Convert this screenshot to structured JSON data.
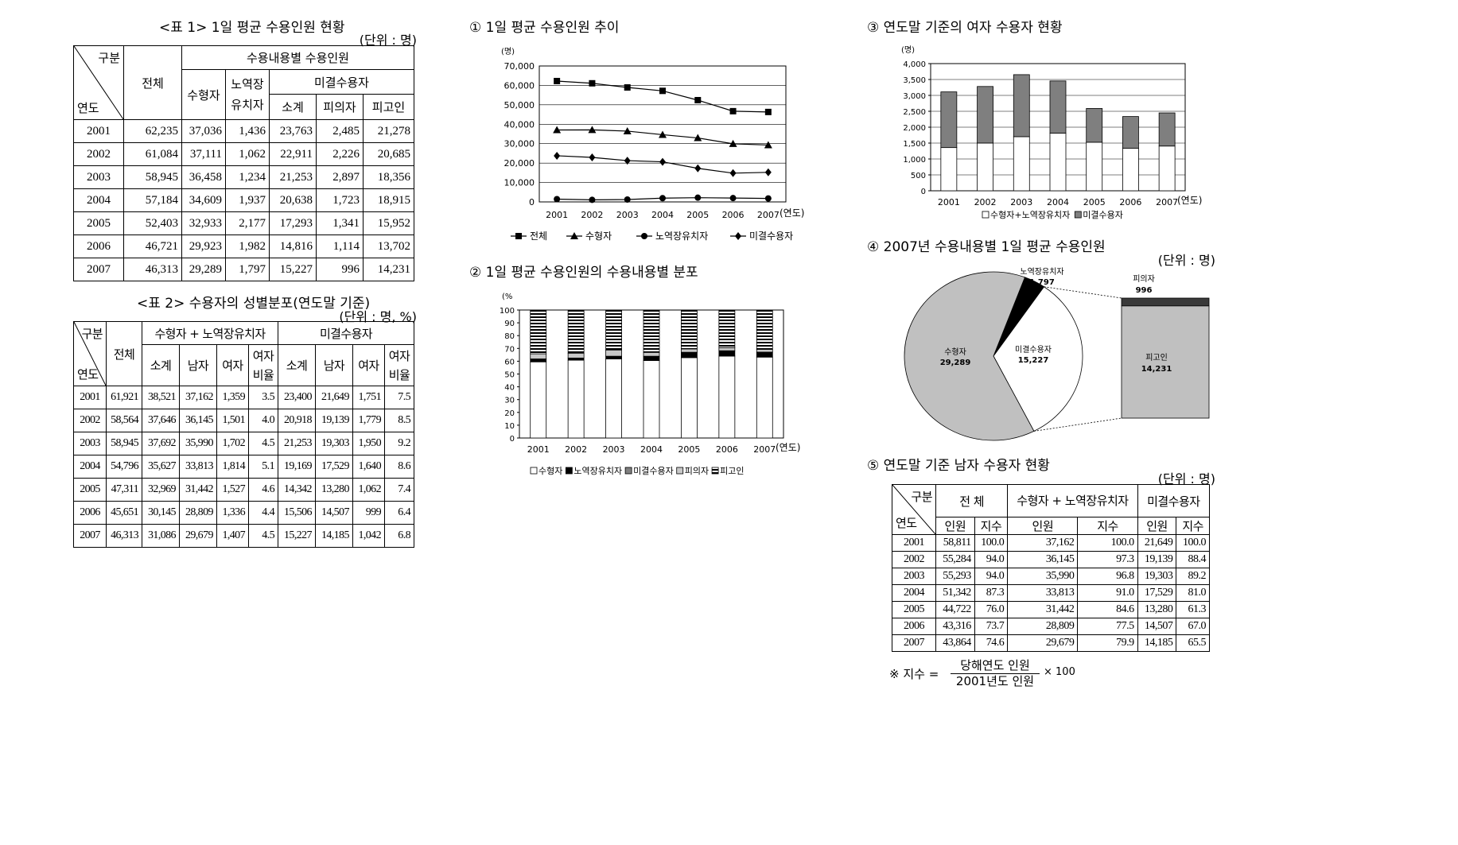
{
  "table1": {
    "title": "<표 1> 1일 평균 수용인원 현황",
    "unit": "(단위 : 명)",
    "hdr_corner_top": "구분",
    "hdr_corner_bot": "연도",
    "hdr_total": "전체",
    "hdr_group": "수용내용별 수용인원",
    "hdr_sentenced": "수형자",
    "hdr_labor": "노역장 유치자",
    "hdr_unsent": "미결수용자",
    "hdr_sub": "소계",
    "hdr_suspect": "피의자",
    "hdr_defendant": "피고인",
    "rows": [
      [
        "2001",
        "62,235",
        "37,036",
        "1,436",
        "23,763",
        "2,485",
        "21,278"
      ],
      [
        "2002",
        "61,084",
        "37,111",
        "1,062",
        "22,911",
        "2,226",
        "20,685"
      ],
      [
        "2003",
        "58,945",
        "36,458",
        "1,234",
        "21,253",
        "2,897",
        "18,356"
      ],
      [
        "2004",
        "57,184",
        "34,609",
        "1,937",
        "20,638",
        "1,723",
        "18,915"
      ],
      [
        "2005",
        "52,403",
        "32,933",
        "2,177",
        "17,293",
        "1,341",
        "15,952"
      ],
      [
        "2006",
        "46,721",
        "29,923",
        "1,982",
        "14,816",
        "1,114",
        "13,702"
      ],
      [
        "2007",
        "46,313",
        "29,289",
        "1,797",
        "15,227",
        "996",
        "14,231"
      ]
    ]
  },
  "table2": {
    "title": "<표 2> 수용자의 성별분포(연도말 기준)",
    "unit": "(단위 : 명, %)",
    "hdr_corner_top": "구분",
    "hdr_corner_bot": "연도",
    "hdr_total": "전체",
    "hdr_group1": "수형자 + 노역장유치자",
    "hdr_group2": "미결수용자",
    "hdr_sub": "소계",
    "hdr_male": "남자",
    "hdr_female": "여자",
    "hdr_ratio": "여자 비율",
    "rows": [
      [
        "2001",
        "61,921",
        "38,521",
        "37,162",
        "1,359",
        "3.5",
        "23,400",
        "21,649",
        "1,751",
        "7.5"
      ],
      [
        "2002",
        "58,564",
        "37,646",
        "36,145",
        "1,501",
        "4.0",
        "20,918",
        "19,139",
        "1,779",
        "8.5"
      ],
      [
        "2003",
        "58,945",
        "37,692",
        "35,990",
        "1,702",
        "4.5",
        "21,253",
        "19,303",
        "1,950",
        "9.2"
      ],
      [
        "2004",
        "54,796",
        "35,627",
        "33,813",
        "1,814",
        "5.1",
        "19,169",
        "17,529",
        "1,640",
        "8.6"
      ],
      [
        "2005",
        "47,311",
        "32,969",
        "31,442",
        "1,527",
        "4.6",
        "14,342",
        "13,280",
        "1,062",
        "7.4"
      ],
      [
        "2006",
        "45,651",
        "30,145",
        "28,809",
        "1,336",
        "4.4",
        "15,506",
        "14,507",
        "999",
        "6.4"
      ],
      [
        "2007",
        "46,313",
        "31,086",
        "29,679",
        "1,407",
        "4.5",
        "15,227",
        "14,185",
        "1,042",
        "6.8"
      ]
    ]
  },
  "table5": {
    "title": "⑤ 연도말 기준 남자 수용자 현황",
    "unit": "(단위 : 명)",
    "hdr_corner_top": "구분",
    "hdr_corner_bot": "연도",
    "hdr_total": "전 체",
    "hdr_group1": "수형자 + 노역장유치자",
    "hdr_group2": "미결수용자",
    "hdr_people": "인원",
    "hdr_index": "지수",
    "rows": [
      [
        "2001",
        "58,811",
        "100.0",
        "37,162",
        "100.0",
        "21,649",
        "100.0"
      ],
      [
        "2002",
        "55,284",
        "94.0",
        "36,145",
        "97.3",
        "19,139",
        "88.4"
      ],
      [
        "2003",
        "55,293",
        "94.0",
        "35,990",
        "96.8",
        "19,303",
        "89.2"
      ],
      [
        "2004",
        "51,342",
        "87.3",
        "33,813",
        "91.0",
        "17,529",
        "81.0"
      ],
      [
        "2005",
        "44,722",
        "76.0",
        "31,442",
        "84.6",
        "13,280",
        "61.3"
      ],
      [
        "2006",
        "43,316",
        "73.7",
        "28,809",
        "77.5",
        "14,507",
        "67.0"
      ],
      [
        "2007",
        "43,864",
        "74.6",
        "29,679",
        "79.9",
        "14,185",
        "65.5"
      ]
    ],
    "note_prefix": "※ 지수 =",
    "note_num": "당해연도 인원",
    "note_den": "2001년도 인원",
    "note_suffix": "× 100"
  },
  "chart_data": [
    {
      "type": "line",
      "title": "① 1일 평균 수용인원 추이",
      "ylabel": "(명)",
      "xlabel": "(연도)",
      "x": [
        "2001",
        "2002",
        "2003",
        "2004",
        "2005",
        "2006",
        "2007"
      ],
      "ylim": [
        0,
        70000
      ],
      "yticks": [
        "0",
        "10,000",
        "20,000",
        "30,000",
        "40,000",
        "50,000",
        "60,000",
        "70,000"
      ],
      "series": [
        {
          "name": "전체",
          "values": [
            62235,
            61084,
            58945,
            57184,
            52403,
            46721,
            46313
          ],
          "marker": "square"
        },
        {
          "name": "수형자",
          "values": [
            37036,
            37111,
            36458,
            34609,
            32933,
            29923,
            29289
          ],
          "marker": "triangle"
        },
        {
          "name": "노역장유치자",
          "values": [
            1436,
            1062,
            1234,
            1937,
            2177,
            1982,
            1797
          ],
          "marker": "circle"
        },
        {
          "name": "미결수용자",
          "values": [
            23763,
            22911,
            21253,
            20638,
            17293,
            14816,
            15227
          ],
          "marker": "diamond"
        }
      ]
    },
    {
      "type": "bar",
      "stacked": true,
      "title": "② 1일 평균 수용인원의 수용내용별 분포",
      "ylabel": "(%",
      "xlabel": "(연도)",
      "x": [
        "2001",
        "2002",
        "2003",
        "2004",
        "2005",
        "2006",
        "2007"
      ],
      "ylim": [
        0,
        100
      ],
      "yticks": [
        "0",
        "10",
        "20",
        "30",
        "40",
        "50",
        "60",
        "70",
        "80",
        "90",
        "100"
      ],
      "series": [
        {
          "name": "수형자",
          "color": "#ffffff",
          "values": [
            59.5,
            60.8,
            61.8,
            60.5,
            62.8,
            64.0,
            63.2
          ]
        },
        {
          "name": "노역장유치자",
          "color": "#000000",
          "values": [
            2.3,
            1.7,
            2.1,
            3.4,
            4.2,
            4.2,
            3.9
          ]
        },
        {
          "name": "미결수용자",
          "color": "#808080",
          "values": [
            0,
            0,
            0,
            0,
            0,
            0,
            0
          ]
        },
        {
          "name": "피의자",
          "color": "#c8c8c8",
          "values": [
            4.0,
            3.6,
            4.9,
            3.0,
            2.6,
            2.4,
            2.2
          ]
        },
        {
          "name": "피고인",
          "color": "stripe",
          "values": [
            34.2,
            33.9,
            31.1,
            33.1,
            30.4,
            29.3,
            30.7
          ]
        }
      ]
    },
    {
      "type": "bar",
      "stacked": true,
      "title": "③ 연도말 기준의 여자 수용자 현황",
      "ylabel": "(명)",
      "xlabel": "(연도)",
      "x": [
        "2001",
        "2002",
        "2003",
        "2004",
        "2005",
        "2006",
        "2007"
      ],
      "ylim": [
        0,
        4000
      ],
      "yticks": [
        "0",
        "500",
        "1,000",
        "1,500",
        "2,000",
        "2,500",
        "3,000",
        "3,500",
        "4,000"
      ],
      "series": [
        {
          "name": "수형자+노역장유치자",
          "color": "#ffffff",
          "values": [
            1359,
            1501,
            1702,
            1814,
            1527,
            1336,
            1407
          ]
        },
        {
          "name": "미결수용자",
          "color": "#7f7f7f",
          "values": [
            1751,
            1779,
            1950,
            1640,
            1062,
            999,
            1042
          ]
        }
      ]
    },
    {
      "type": "pie",
      "title": "④ 2007년 수용내용별 1일 평균 수용인원",
      "unit": "(단위 : 명)",
      "slices": [
        {
          "label": "수형자",
          "value": 29289,
          "value_text": "29,289",
          "color": "#c0c0c0"
        },
        {
          "label": "노역장유치자",
          "value": 1797,
          "value_text": "1,797",
          "color": "#000000"
        },
        {
          "label": "미결수용자",
          "value": 15227,
          "value_text": "15,227",
          "color": "#ffffff"
        }
      ],
      "breakdown": [
        {
          "label": "피의자",
          "value": 996,
          "value_text": "996",
          "color": "#3a3a3a"
        },
        {
          "label": "피고인",
          "value": 14231,
          "value_text": "14,231",
          "color": "#c0c0c0"
        }
      ]
    }
  ]
}
